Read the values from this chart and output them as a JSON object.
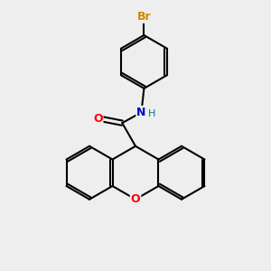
{
  "bg_color": "#eeeeee",
  "bond_color": "#000000",
  "atom_colors": {
    "O_xanthene": "#ff0000",
    "O_carbonyl": "#ff0000",
    "N": "#0000cc",
    "H": "#008080",
    "Br": "#cc8800"
  },
  "figsize": [
    3.0,
    3.0
  ],
  "dpi": 100
}
